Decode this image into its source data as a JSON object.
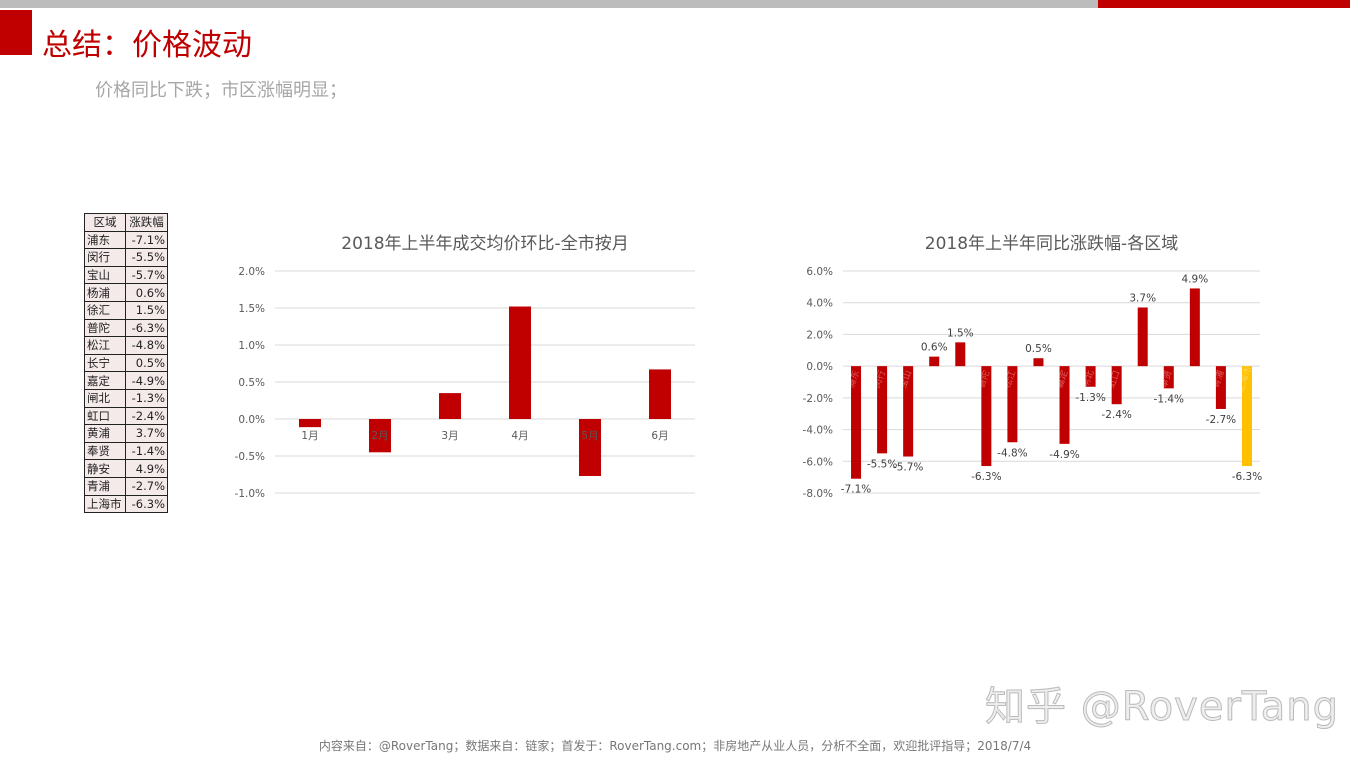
{
  "header": {
    "title": "总结：价格波动",
    "subtitle": "价格同比下跌；市区涨幅明显；"
  },
  "colors": {
    "accent": "#c00000",
    "highlight": "#ffc000",
    "top_bar": "#bcbcbc"
  },
  "table": {
    "headers": [
      "区域",
      "涨跌幅"
    ],
    "rows": [
      [
        "浦东",
        "-7.1%"
      ],
      [
        "闵行",
        "-5.5%"
      ],
      [
        "宝山",
        "-5.7%"
      ],
      [
        "杨浦",
        "0.6%"
      ],
      [
        "徐汇",
        "1.5%"
      ],
      [
        "普陀",
        "-6.3%"
      ],
      [
        "松江",
        "-4.8%"
      ],
      [
        "长宁",
        "0.5%"
      ],
      [
        "嘉定",
        "-4.9%"
      ],
      [
        "闸北",
        "-1.3%"
      ],
      [
        "虹口",
        "-2.4%"
      ],
      [
        "黄浦",
        "3.7%"
      ],
      [
        "奉贤",
        "-1.4%"
      ],
      [
        "静安",
        "4.9%"
      ],
      [
        "青浦",
        "-2.7%"
      ],
      [
        "上海市",
        "-6.3%"
      ]
    ]
  },
  "chart_data": [
    {
      "type": "bar",
      "title": "2018年上半年成交均价环比-全市按月",
      "categories": [
        "1月",
        "2月",
        "3月",
        "4月",
        "5月",
        "6月"
      ],
      "values": [
        -0.11,
        -0.45,
        0.35,
        1.52,
        -0.77,
        0.67
      ],
      "yticks": [
        "2.0%",
        "1.5%",
        "1.0%",
        "0.5%",
        "0.0%",
        "-0.5%",
        "-1.0%"
      ],
      "ylim": [
        -1.0,
        2.0
      ],
      "unit": "%",
      "grid": true,
      "bar_color": "#c00000"
    },
    {
      "type": "bar",
      "title": "2018年上半年同比涨跌幅-各区域",
      "categories": [
        "浦东",
        "闵行",
        "宝山",
        "杨浦",
        "徐汇",
        "普陀",
        "松江",
        "长宁",
        "嘉定",
        "闸北",
        "虹口",
        "黄浦",
        "奉贤",
        "静安",
        "青浦",
        "上海市"
      ],
      "values": [
        -7.1,
        -5.5,
        -5.7,
        0.6,
        1.5,
        -6.3,
        -4.8,
        0.5,
        -4.9,
        -1.3,
        -2.4,
        3.7,
        -1.4,
        4.9,
        -2.7,
        -6.3
      ],
      "data_labels": [
        "-7.1%",
        "-5.5%",
        "-5.7%",
        "0.6%",
        "1.5%",
        "-6.3%",
        "-4.8%",
        "0.5%",
        "-4.9%",
        "-1.3%",
        "-2.4%",
        "3.7%",
        "-1.4%",
        "4.9%",
        "-2.7%",
        "-6.3%"
      ],
      "yticks": [
        "6.0%",
        "4.0%",
        "2.0%",
        "0.0%",
        "-2.0%",
        "-4.0%",
        "-6.0%",
        "-8.0%"
      ],
      "ylim": [
        -8.0,
        6.0
      ],
      "unit": "%",
      "grid": true,
      "bar_color": "#c00000",
      "highlight_category": "上海市"
    }
  ],
  "watermark": "知乎 @RoverTang",
  "footer": "内容来自：@RoverTang；数据来自：链家；首发于：RoverTang.com；非房地产从业人员，分析不全面，欢迎批评指导；2018/7/4"
}
